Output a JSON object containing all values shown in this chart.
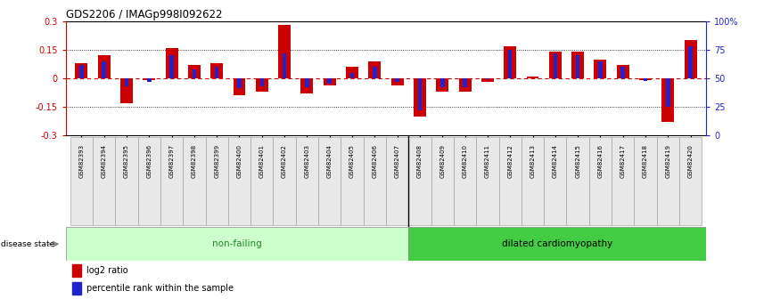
{
  "title": "GDS2206 / IMAGp998I092622",
  "samples": [
    "GSM82393",
    "GSM82394",
    "GSM82395",
    "GSM82396",
    "GSM82397",
    "GSM82398",
    "GSM82399",
    "GSM82400",
    "GSM82401",
    "GSM82402",
    "GSM82403",
    "GSM82404",
    "GSM82405",
    "GSM82406",
    "GSM82407",
    "GSM82408",
    "GSM82409",
    "GSM82410",
    "GSM82411",
    "GSM82412",
    "GSM82413",
    "GSM82414",
    "GSM82415",
    "GSM82416",
    "GSM82417",
    "GSM82418",
    "GSM82419",
    "GSM82420"
  ],
  "log2_ratio": [
    0.08,
    0.12,
    -0.13,
    -0.01,
    0.16,
    0.07,
    0.08,
    -0.09,
    -0.07,
    0.28,
    -0.08,
    -0.04,
    0.06,
    0.09,
    -0.04,
    -0.2,
    -0.07,
    -0.07,
    -0.02,
    0.17,
    0.01,
    0.14,
    0.14,
    0.1,
    0.07,
    -0.01,
    -0.23,
    0.2
  ],
  "percentile": [
    62,
    65,
    43,
    47,
    70,
    58,
    60,
    41,
    43,
    72,
    42,
    45,
    55,
    60,
    47,
    22,
    42,
    42,
    49,
    75,
    50,
    72,
    70,
    65,
    60,
    48,
    25,
    78
  ],
  "non_failing_count": 15,
  "ylim": [
    -0.3,
    0.3
  ],
  "yticks_left": [
    -0.3,
    -0.15,
    0.0,
    0.15,
    0.3
  ],
  "ytick_labels_left": [
    "-0.3",
    "-0.15",
    "0",
    "0.15",
    "0.3"
  ],
  "right_yticks_pct": [
    0,
    25,
    50,
    75,
    100
  ],
  "right_ytick_labels": [
    "0",
    "25",
    "50",
    "75",
    "100%"
  ],
  "bar_color_red": "#cc0000",
  "bar_color_blue": "#2222cc",
  "non_failing_color": "#ccffcc",
  "dilated_color": "#44cc44",
  "group_label_nf_color": "#228822",
  "group_label_dc_color": "#000000",
  "disease_state_label": "disease state",
  "non_failing_label": "non-failing",
  "dilated_label": "dilated cardiomyopathy",
  "legend_red": "log2 ratio",
  "legend_blue": "percentile rank within the sample",
  "red_bar_width": 0.55,
  "blue_bar_width": 0.18
}
